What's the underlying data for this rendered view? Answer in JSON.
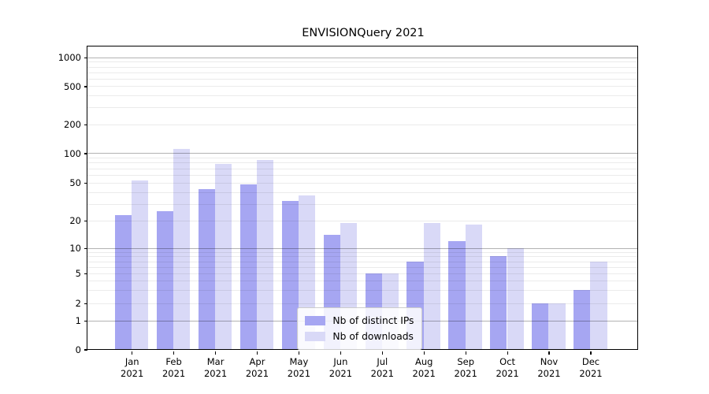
{
  "figure": {
    "title": "ENVISIONQuery 2021"
  },
  "chart_data": {
    "type": "bar",
    "title": "ENVISIONQuery 2021",
    "xlabel": "",
    "ylabel": "",
    "categories": [
      "Jan",
      "Feb",
      "Mar",
      "Apr",
      "May",
      "Jun",
      "Jul",
      "Aug",
      "Sep",
      "Oct",
      "Nov",
      "Dec"
    ],
    "year_label": "2021",
    "series": [
      {
        "name": "Nb of distinct IPs",
        "color": "#a6a6f2",
        "values": [
          23,
          25,
          43,
          48,
          32,
          14,
          5,
          7,
          12,
          8,
          2,
          3
        ]
      },
      {
        "name": "Nb of downloads",
        "color": "#d9d9f7",
        "values": [
          53,
          110,
          78,
          85,
          37,
          19,
          5,
          19,
          18,
          10,
          2,
          7
        ]
      }
    ],
    "yscale": "log-with-zero-baseline",
    "yticks": [
      0,
      1,
      2,
      5,
      10,
      20,
      50,
      100,
      200,
      500,
      1000
    ],
    "ylim": [
      0,
      1300
    ],
    "grid": "horizontal major and minor",
    "legend_position": "lower center"
  }
}
